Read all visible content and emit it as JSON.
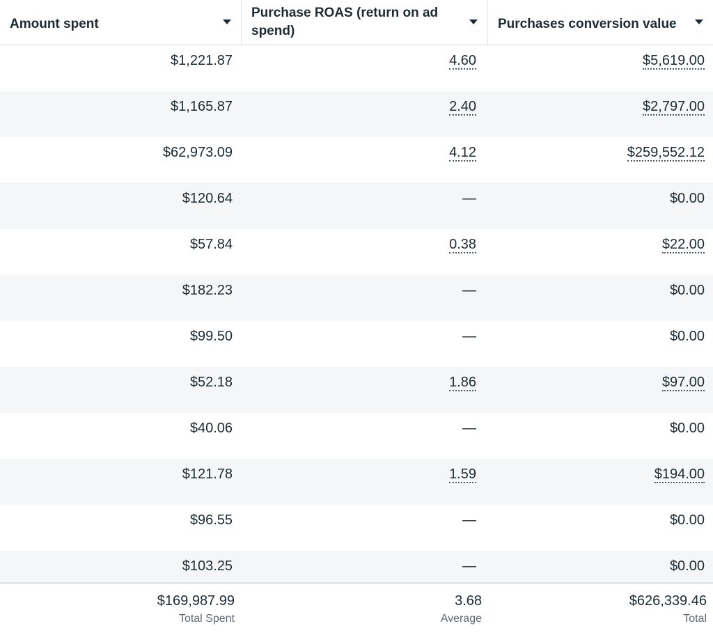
{
  "columns": [
    {
      "label": "Amount spent"
    },
    {
      "label": "Purchase ROAS (return on ad spend)"
    },
    {
      "label": "Purchases conversion value"
    }
  ],
  "rows": [
    {
      "spent": "$1,221.87",
      "roas": "4.60",
      "value": "$5,619.00"
    },
    {
      "spent": "$1,165.87",
      "roas": "2.40",
      "value": "$2,797.00"
    },
    {
      "spent": "$62,973.09",
      "roas": "4.12",
      "value": "$259,552.12"
    },
    {
      "spent": "$120.64",
      "roas": "—",
      "value": "$0.00"
    },
    {
      "spent": "$57.84",
      "roas": "0.38",
      "value": "$22.00"
    },
    {
      "spent": "$182.23",
      "roas": "—",
      "value": "$0.00"
    },
    {
      "spent": "$99.50",
      "roas": "—",
      "value": "$0.00"
    },
    {
      "spent": "$52.18",
      "roas": "1.86",
      "value": "$97.00"
    },
    {
      "spent": "$40.06",
      "roas": "—",
      "value": "$0.00"
    },
    {
      "spent": "$121.78",
      "roas": "1.59",
      "value": "$194.00"
    },
    {
      "spent": "$96.55",
      "roas": "—",
      "value": "$0.00"
    },
    {
      "spent": "$103.25",
      "roas": "—",
      "value": "$0.00"
    }
  ],
  "totals": {
    "spent": {
      "value": "$169,987.99",
      "label": "Total Spent"
    },
    "roas": {
      "value": "3.68",
      "label": "Average"
    },
    "value": {
      "value": "$626,339.46",
      "label": "Total"
    }
  }
}
